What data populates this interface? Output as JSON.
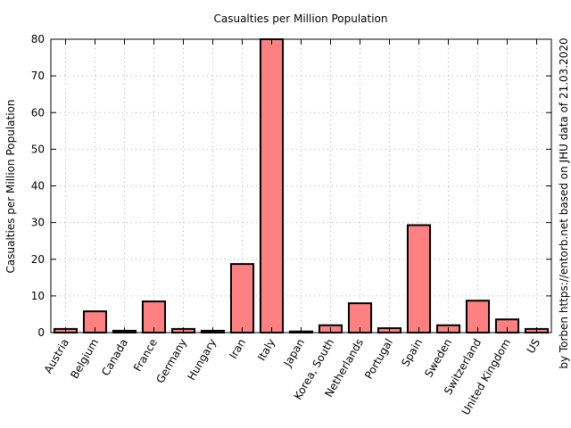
{
  "chart_data": {
    "type": "bar",
    "title": "Casualties per Million Population",
    "xlabel": "",
    "ylabel": "Casualties per Million Population",
    "right_label": "by Torben https://entorb.net based on JHU data of 21.03.2020",
    "categories": [
      "Austria",
      "Belgium",
      "Canada",
      "France",
      "Germany",
      "Hungary",
      "Iran",
      "Italy",
      "Japan",
      "Korea, South",
      "Netherlands",
      "Portugal",
      "Spain",
      "Sweden",
      "Switzerland",
      "United Kingdom",
      "US"
    ],
    "values": [
      1.0,
      5.8,
      0.5,
      8.5,
      1.0,
      0.5,
      18.7,
      80.0,
      0.3,
      2.0,
      8.0,
      1.2,
      29.3,
      2.0,
      8.7,
      3.6,
      1.0
    ],
    "ylim": [
      0,
      80
    ],
    "yticks": [
      0,
      10,
      20,
      30,
      40,
      50,
      60,
      70,
      80
    ],
    "grid": true,
    "bar_color": "#ff8080",
    "edge_color": "#000000"
  }
}
